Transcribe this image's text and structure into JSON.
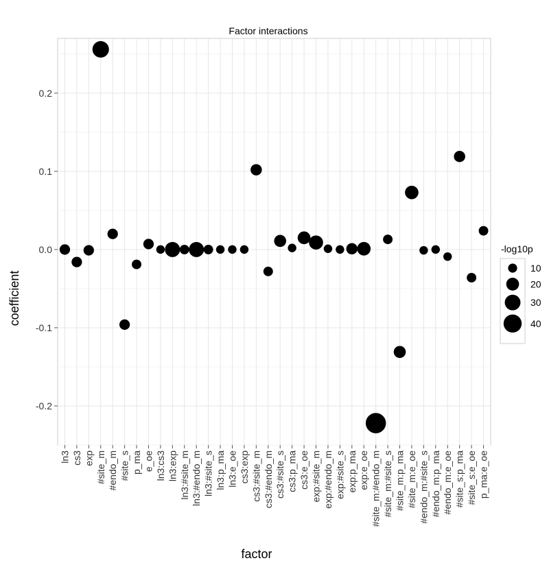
{
  "chart_data": {
    "type": "scatter",
    "title": "Factor interactions",
    "xlabel": "factor",
    "ylabel": "coefficient",
    "ylim": [
      -0.25,
      0.27
    ],
    "yticks": [
      -0.2,
      -0.1,
      0.0,
      0.1,
      0.2
    ],
    "ytick_labels": [
      "-0.2",
      "-0.1",
      "0.0",
      "0.1",
      "0.2"
    ],
    "grid": true,
    "legend_position": "right",
    "legend_title": "-log10p",
    "legend_entries": [
      {
        "label": "10",
        "value": 10
      },
      {
        "label": "20",
        "value": 20
      },
      {
        "label": "30",
        "value": 30
      },
      {
        "label": "40",
        "value": 40
      }
    ],
    "point_color": "#000000",
    "categories": [
      "ln3",
      "cs3",
      "exp",
      "#site_m",
      "#endo_m",
      "#site_s",
      "p_ma",
      "e_oe",
      "ln3:cs3",
      "ln3:exp",
      "ln3:#site_m",
      "ln3:#endo_m",
      "ln3:#site_s",
      "ln3:p_ma",
      "ln3:e_oe",
      "cs3:exp",
      "cs3:#site_m",
      "cs3:#endo_m",
      "cs3:#site_s",
      "cs3:p_ma",
      "cs3:e_oe",
      "exp:#site_m",
      "exp:#endo_m",
      "exp:#site_s",
      "exp:p_ma",
      "exp:e_oe",
      "#site_m:#endo_m",
      "#site_m:#site_s",
      "#site_m:p_ma",
      "#site_m:e_oe",
      "#endo_m:#site_s",
      "#endo_m:p_ma",
      "#endo_m:e_oe",
      "#site_s:p_ma",
      "#site_s:e_oe",
      "p_ma:e_oe"
    ],
    "values": [
      0.0,
      -0.016,
      -0.001,
      0.256,
      0.02,
      -0.096,
      -0.019,
      0.007,
      0.0,
      0.0,
      0.0,
      0.0,
      0.0,
      0.0,
      0.0,
      0.0,
      0.102,
      -0.028,
      0.011,
      0.002,
      0.015,
      0.009,
      0.001,
      0.0,
      0.001,
      0.001,
      -0.222,
      0.013,
      -0.131,
      0.073,
      -0.001,
      0.0,
      -0.009,
      0.119,
      -0.036,
      0.024
    ],
    "sizes": [
      12,
      12,
      12,
      30,
      12,
      12,
      10,
      12,
      8,
      25,
      10,
      25,
      10,
      8,
      8,
      8,
      14,
      10,
      16,
      8,
      18,
      22,
      8,
      8,
      14,
      20,
      45,
      10,
      16,
      20,
      8,
      8,
      8,
      14,
      10,
      10
    ]
  }
}
